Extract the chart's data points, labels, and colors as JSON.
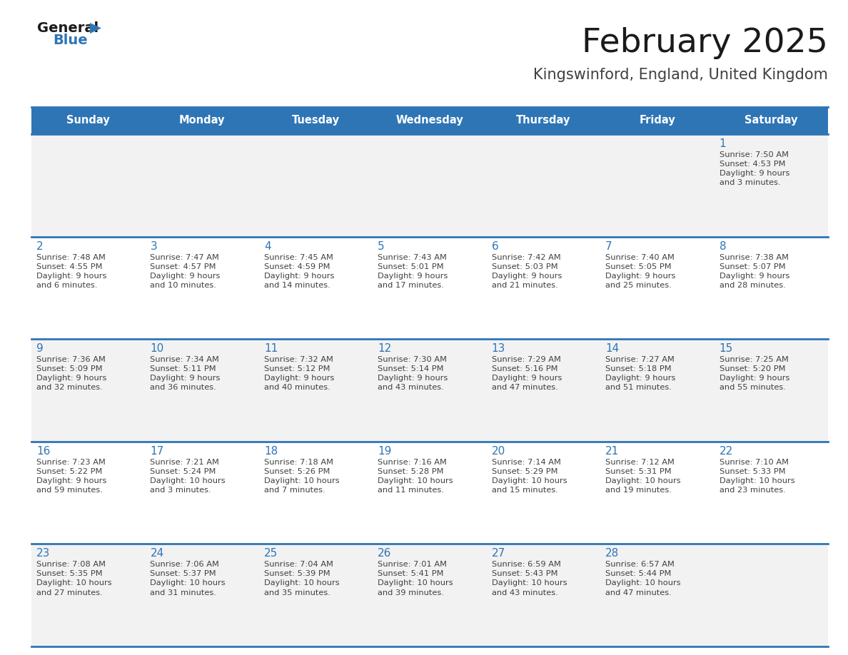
{
  "title": "February 2025",
  "subtitle": "Kingswinford, England, United Kingdom",
  "header_bg": "#2e75b6",
  "header_text_color": "#ffffff",
  "row_bg_light": "#f2f2f2",
  "row_bg_white": "#ffffff",
  "day_number_color": "#2e75b6",
  "info_text_color": "#404040",
  "border_color": "#2e75b6",
  "days_of_week": [
    "Sunday",
    "Monday",
    "Tuesday",
    "Wednesday",
    "Thursday",
    "Friday",
    "Saturday"
  ],
  "weeks": [
    [
      {
        "day": null,
        "info": null
      },
      {
        "day": null,
        "info": null
      },
      {
        "day": null,
        "info": null
      },
      {
        "day": null,
        "info": null
      },
      {
        "day": null,
        "info": null
      },
      {
        "day": null,
        "info": null
      },
      {
        "day": "1",
        "info": "Sunrise: 7:50 AM\nSunset: 4:53 PM\nDaylight: 9 hours\nand 3 minutes."
      }
    ],
    [
      {
        "day": "2",
        "info": "Sunrise: 7:48 AM\nSunset: 4:55 PM\nDaylight: 9 hours\nand 6 minutes."
      },
      {
        "day": "3",
        "info": "Sunrise: 7:47 AM\nSunset: 4:57 PM\nDaylight: 9 hours\nand 10 minutes."
      },
      {
        "day": "4",
        "info": "Sunrise: 7:45 AM\nSunset: 4:59 PM\nDaylight: 9 hours\nand 14 minutes."
      },
      {
        "day": "5",
        "info": "Sunrise: 7:43 AM\nSunset: 5:01 PM\nDaylight: 9 hours\nand 17 minutes."
      },
      {
        "day": "6",
        "info": "Sunrise: 7:42 AM\nSunset: 5:03 PM\nDaylight: 9 hours\nand 21 minutes."
      },
      {
        "day": "7",
        "info": "Sunrise: 7:40 AM\nSunset: 5:05 PM\nDaylight: 9 hours\nand 25 minutes."
      },
      {
        "day": "8",
        "info": "Sunrise: 7:38 AM\nSunset: 5:07 PM\nDaylight: 9 hours\nand 28 minutes."
      }
    ],
    [
      {
        "day": "9",
        "info": "Sunrise: 7:36 AM\nSunset: 5:09 PM\nDaylight: 9 hours\nand 32 minutes."
      },
      {
        "day": "10",
        "info": "Sunrise: 7:34 AM\nSunset: 5:11 PM\nDaylight: 9 hours\nand 36 minutes."
      },
      {
        "day": "11",
        "info": "Sunrise: 7:32 AM\nSunset: 5:12 PM\nDaylight: 9 hours\nand 40 minutes."
      },
      {
        "day": "12",
        "info": "Sunrise: 7:30 AM\nSunset: 5:14 PM\nDaylight: 9 hours\nand 43 minutes."
      },
      {
        "day": "13",
        "info": "Sunrise: 7:29 AM\nSunset: 5:16 PM\nDaylight: 9 hours\nand 47 minutes."
      },
      {
        "day": "14",
        "info": "Sunrise: 7:27 AM\nSunset: 5:18 PM\nDaylight: 9 hours\nand 51 minutes."
      },
      {
        "day": "15",
        "info": "Sunrise: 7:25 AM\nSunset: 5:20 PM\nDaylight: 9 hours\nand 55 minutes."
      }
    ],
    [
      {
        "day": "16",
        "info": "Sunrise: 7:23 AM\nSunset: 5:22 PM\nDaylight: 9 hours\nand 59 minutes."
      },
      {
        "day": "17",
        "info": "Sunrise: 7:21 AM\nSunset: 5:24 PM\nDaylight: 10 hours\nand 3 minutes."
      },
      {
        "day": "18",
        "info": "Sunrise: 7:18 AM\nSunset: 5:26 PM\nDaylight: 10 hours\nand 7 minutes."
      },
      {
        "day": "19",
        "info": "Sunrise: 7:16 AM\nSunset: 5:28 PM\nDaylight: 10 hours\nand 11 minutes."
      },
      {
        "day": "20",
        "info": "Sunrise: 7:14 AM\nSunset: 5:29 PM\nDaylight: 10 hours\nand 15 minutes."
      },
      {
        "day": "21",
        "info": "Sunrise: 7:12 AM\nSunset: 5:31 PM\nDaylight: 10 hours\nand 19 minutes."
      },
      {
        "day": "22",
        "info": "Sunrise: 7:10 AM\nSunset: 5:33 PM\nDaylight: 10 hours\nand 23 minutes."
      }
    ],
    [
      {
        "day": "23",
        "info": "Sunrise: 7:08 AM\nSunset: 5:35 PM\nDaylight: 10 hours\nand 27 minutes."
      },
      {
        "day": "24",
        "info": "Sunrise: 7:06 AM\nSunset: 5:37 PM\nDaylight: 10 hours\nand 31 minutes."
      },
      {
        "day": "25",
        "info": "Sunrise: 7:04 AM\nSunset: 5:39 PM\nDaylight: 10 hours\nand 35 minutes."
      },
      {
        "day": "26",
        "info": "Sunrise: 7:01 AM\nSunset: 5:41 PM\nDaylight: 10 hours\nand 39 minutes."
      },
      {
        "day": "27",
        "info": "Sunrise: 6:59 AM\nSunset: 5:43 PM\nDaylight: 10 hours\nand 43 minutes."
      },
      {
        "day": "28",
        "info": "Sunrise: 6:57 AM\nSunset: 5:44 PM\nDaylight: 10 hours\nand 47 minutes."
      },
      {
        "day": null,
        "info": null
      }
    ]
  ]
}
